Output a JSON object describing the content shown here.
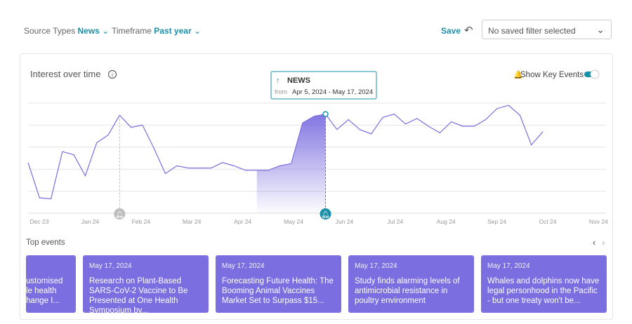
{
  "header": {
    "source_label": "Source Types",
    "source_value": "News",
    "timeframe_label": "Timeframe",
    "timeframe_value": "Past year",
    "save": "Save",
    "filter_placeholder": "No saved filter selected"
  },
  "chart_data": {
    "type": "line",
    "title": "Interest over time",
    "toggle_label": "Show Key Events",
    "x_labels": [
      "Dec 23",
      "Jan 24",
      "Feb 24",
      "Mar 24",
      "Apr 24",
      "May 24",
      "Jun 24",
      "Jul 24",
      "Aug 24",
      "Sep 24",
      "Oct 24",
      "Nov 24"
    ],
    "series": [
      {
        "name": "NEWS",
        "color": "#7b6ee0",
        "values": [
          46,
          14,
          13,
          56,
          53,
          34,
          64,
          71,
          89,
          78,
          80,
          59,
          36,
          43,
          41,
          41,
          41,
          46,
          43,
          39,
          39,
          39,
          43,
          45,
          82,
          88,
          90,
          76,
          85,
          76,
          72,
          87,
          90,
          81,
          86,
          79,
          73,
          83,
          79,
          79,
          85,
          95,
          98,
          89,
          62,
          74
        ]
      }
    ],
    "ylim": [
      0,
      100
    ],
    "yticks": [
      20,
      40,
      60,
      80,
      100
    ],
    "grid": true,
    "highlight": {
      "start": 20,
      "end": 26,
      "color": "#7b6ee0"
    },
    "key_events": [
      {
        "index": 8,
        "color": "#bdbdbd"
      },
      {
        "index": 26,
        "color": "#1a8fa8"
      }
    ],
    "tooltip": {
      "title": "NEWS",
      "from": "from",
      "range": "Apr 5, 2024 - May 17, 2024"
    }
  },
  "events": {
    "title": "Top events",
    "cards": [
      {
        "date": "",
        "text": "ustomised\nle health\nhange I..."
      },
      {
        "date": "May 17, 2024",
        "text": "Research on Plant-Based SARS-CoV-2 Vaccine to Be Presented at One Health Symposium by..."
      },
      {
        "date": "May 17, 2024",
        "text": "Forecasting Future Health: The Booming Animal Vaccines Market Set to Surpass $15..."
      },
      {
        "date": "May 17, 2024",
        "text": "Study finds alarming levels of antimicrobial resistance in poultry environment"
      },
      {
        "date": "May 17, 2024",
        "text": "Whales and dolphins now have legal personhood in the Pacific - but one treaty won't be..."
      }
    ]
  }
}
